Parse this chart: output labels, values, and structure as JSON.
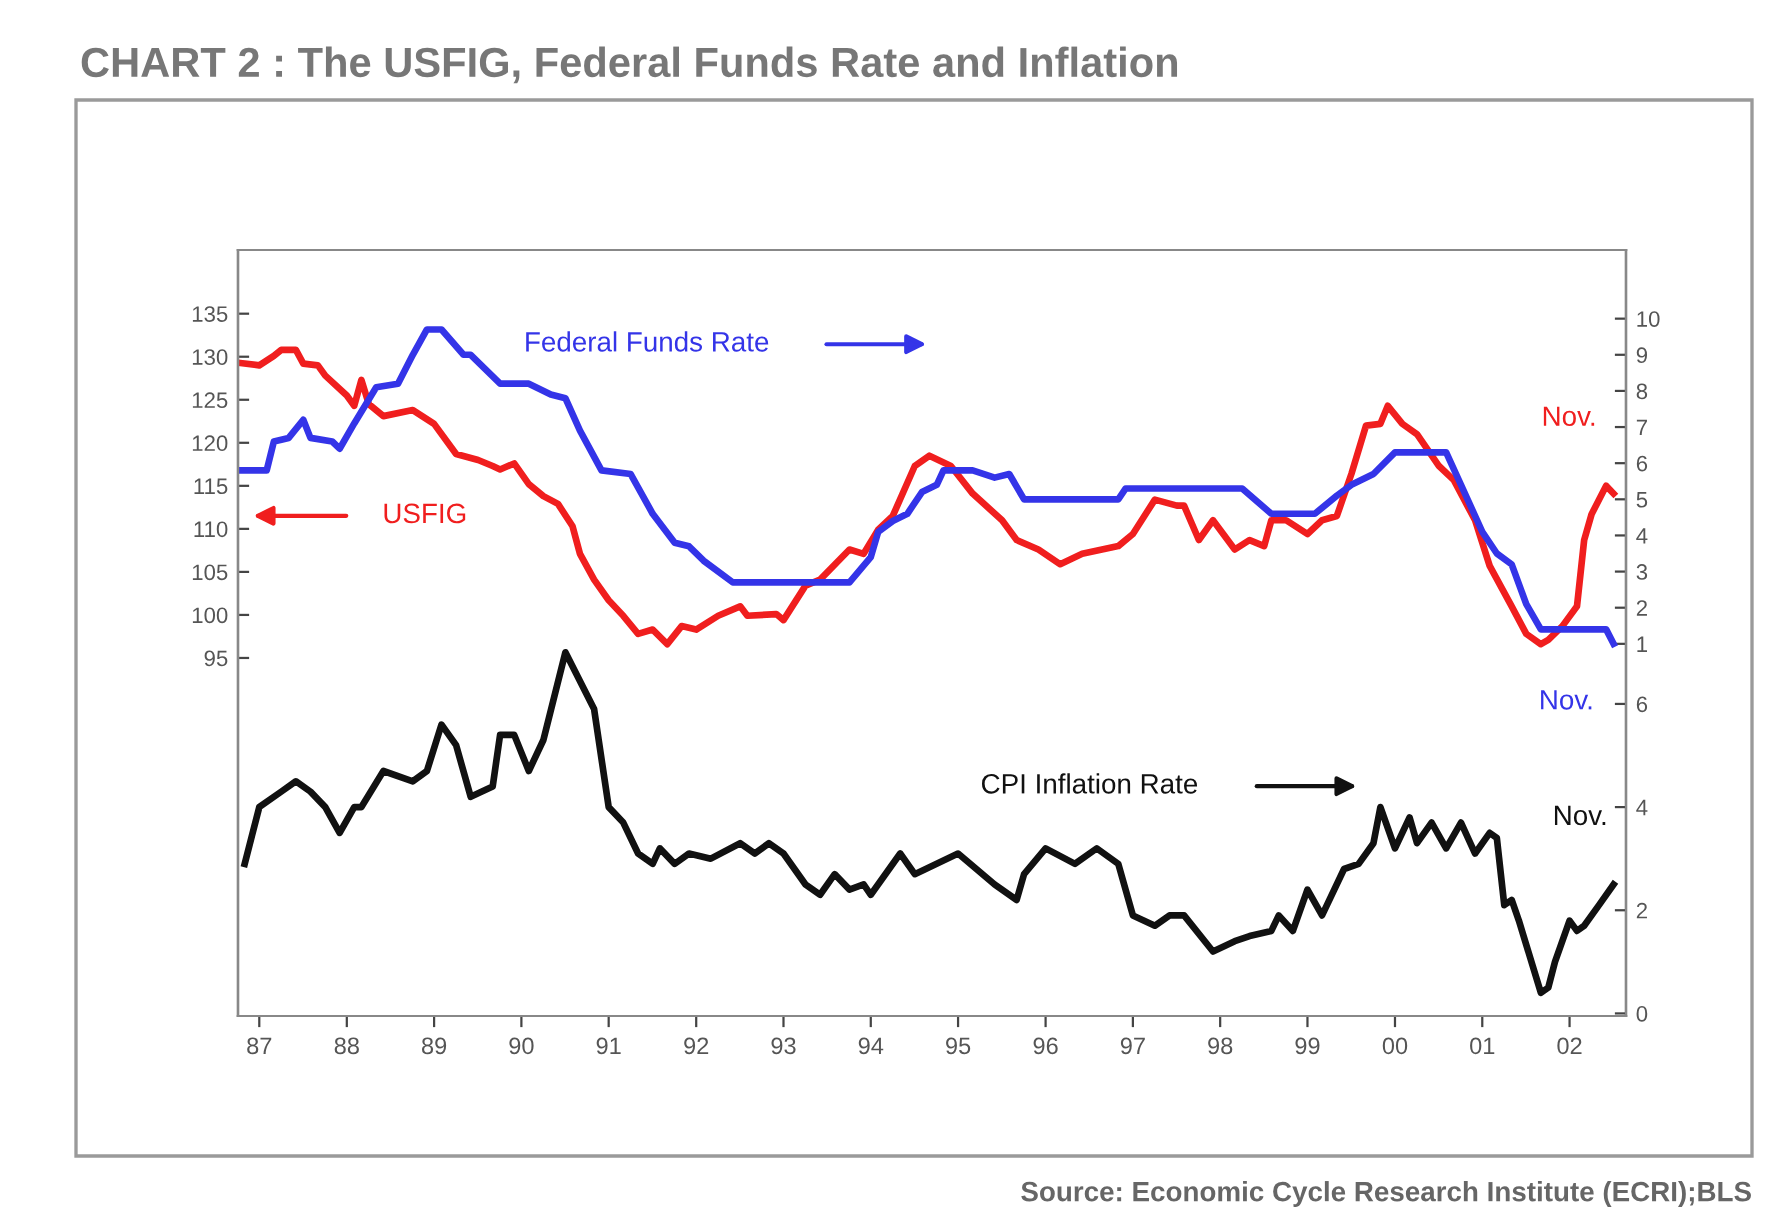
{
  "chart_data": {
    "type": "line",
    "title": "CHART 2 : The USFIG, Federal Funds Rate and Inflation",
    "series": [
      {
        "name": "USFIG",
        "color": "#f01e1e",
        "axis": "y",
        "x": [
          "1987-02",
          "1987-05",
          "1987-07",
          "1987-08",
          "1987-10",
          "1987-11",
          "1988-01",
          "1988-02",
          "1988-05",
          "1988-06",
          "1988-07",
          "1988-08",
          "1988-10",
          "1989-02",
          "1989-05",
          "1989-08",
          "1989-11",
          "1990-01",
          "1990-02",
          "1990-04",
          "1990-06",
          "1990-08",
          "1990-10",
          "1990-12",
          "1991-01",
          "1991-03",
          "1991-05",
          "1991-07",
          "1991-09",
          "1991-11",
          "1992-01",
          "1992-03",
          "1992-05",
          "1992-08",
          "1992-11",
          "1992-12",
          "1993-04",
          "1993-05",
          "1993-08",
          "1993-10",
          "1994-02",
          "1994-04",
          "1994-06",
          "1994-08",
          "1994-11",
          "1995-01",
          "1995-04",
          "1995-07",
          "1995-11",
          "1996-01",
          "1996-04",
          "1996-07",
          "1996-10",
          "1997-03",
          "1997-05",
          "1997-08",
          "1997-11",
          "1997-12",
          "1998-02",
          "1998-04",
          "1998-07",
          "1998-09",
          "1998-11",
          "1998-12",
          "1999-02",
          "1999-05",
          "1999-07",
          "1999-09",
          "1999-11",
          "2000-01",
          "2000-03",
          "2000-04",
          "2000-06",
          "2000-08",
          "2000-11",
          "2001-01",
          "2001-04",
          "2001-06",
          "2001-09",
          "2001-11",
          "2002-01",
          "2002-02",
          "2002-04",
          "2002-06",
          "2002-07",
          "2002-08",
          "2002-10",
          "2002-11"
        ],
        "values": [
          129.3,
          129.0,
          130.1,
          130.8,
          130.8,
          129.2,
          129.0,
          127.8,
          125.5,
          124.3,
          127.3,
          124.5,
          123.1,
          123.8,
          122.2,
          118.7,
          118.0,
          117.3,
          116.9,
          117.6,
          115.2,
          113.8,
          112.9,
          110.3,
          107.1,
          104.1,
          101.7,
          99.9,
          97.8,
          98.3,
          96.6,
          98.7,
          98.3,
          99.9,
          101.0,
          99.9,
          100.1,
          99.4,
          103.4,
          104.1,
          107.6,
          107.1,
          109.9,
          111.5,
          117.3,
          118.5,
          117.3,
          114.1,
          111.0,
          108.7,
          107.6,
          105.9,
          107.1,
          108.0,
          109.4,
          113.4,
          112.7,
          112.7,
          108.7,
          111.0,
          107.6,
          108.7,
          108.0,
          111.0,
          111.0,
          109.4,
          111.0,
          111.5,
          116.4,
          122.0,
          122.2,
          124.3,
          122.2,
          121.0,
          117.3,
          115.7,
          111.0,
          105.7,
          101.0,
          97.8,
          96.6,
          97.1,
          98.7,
          101.0,
          108.7,
          111.7,
          115.0,
          114.1
        ]
      },
      {
        "name": "Federal Funds Rate",
        "color": "#3434e8",
        "axis": "y2",
        "x": [
          "1987-02",
          "1987-06",
          "1987-07",
          "1987-09",
          "1987-11",
          "1987-12",
          "1988-03",
          "1988-04",
          "1988-06",
          "1988-09",
          "1988-12",
          "1989-02",
          "1989-04",
          "1989-06",
          "1989-09",
          "1989-10",
          "1990-02",
          "1990-06",
          "1990-09",
          "1990-11",
          "1991-01",
          "1991-04",
          "1991-08",
          "1991-11",
          "1992-02",
          "1992-04",
          "1992-06",
          "1992-10",
          "1993-01",
          "1994-02",
          "1994-05",
          "1994-06",
          "1994-08",
          "1994-10",
          "1994-12",
          "1995-02",
          "1995-03",
          "1995-07",
          "1995-10",
          "1995-12",
          "1996-02",
          "1997-03",
          "1997-04",
          "1998-08",
          "1998-12",
          "1999-06",
          "1999-09",
          "1999-11",
          "2000-02",
          "2000-05",
          "2000-12",
          "2001-02",
          "2001-05",
          "2001-07",
          "2001-09",
          "2001-11",
          "2002-01",
          "2002-10",
          "2002-11"
        ],
        "values": [
          5.8,
          5.8,
          6.6,
          6.7,
          7.2,
          6.7,
          6.6,
          6.4,
          7.1,
          8.1,
          8.2,
          9.0,
          9.7,
          9.7,
          9.0,
          9.0,
          8.2,
          8.2,
          7.9,
          7.8,
          6.9,
          5.8,
          5.7,
          4.6,
          3.8,
          3.7,
          3.3,
          2.7,
          2.7,
          2.7,
          3.4,
          4.1,
          4.4,
          4.6,
          5.2,
          5.4,
          5.8,
          5.8,
          5.6,
          5.7,
          5.0,
          5.0,
          5.3,
          5.3,
          4.6,
          4.6,
          5.1,
          5.4,
          5.7,
          6.3,
          6.3,
          5.4,
          4.1,
          3.5,
          3.2,
          2.1,
          1.4,
          1.4,
          1.0
        ]
      },
      {
        "name": "CPI Inflation Rate",
        "color": "#111111",
        "axis": "y3",
        "x": [
          "1987-03",
          "1987-05",
          "1987-08",
          "1987-10",
          "1987-12",
          "1988-02",
          "1988-04",
          "1988-06",
          "1988-07",
          "1988-10",
          "1989-02",
          "1989-04",
          "1989-06",
          "1989-08",
          "1989-10",
          "1990-01",
          "1990-02",
          "1990-04",
          "1990-06",
          "1990-08",
          "1990-11",
          "1991-03",
          "1991-05",
          "1991-07",
          "1991-09",
          "1991-11",
          "1991-12",
          "1992-02",
          "1992-04",
          "1992-07",
          "1992-11",
          "1993-01",
          "1993-03",
          "1993-05",
          "1993-08",
          "1993-10",
          "1993-12",
          "1994-02",
          "1994-04",
          "1994-05",
          "1994-09",
          "1994-11",
          "1995-05",
          "1995-10",
          "1996-01",
          "1996-02",
          "1996-05",
          "1996-09",
          "1996-12",
          "1997-03",
          "1997-05",
          "1997-08",
          "1997-10",
          "1997-12",
          "1998-04",
          "1998-07",
          "1998-09",
          "1998-12",
          "1999-01",
          "1999-03",
          "1999-05",
          "1999-07",
          "1999-10",
          "1999-12",
          "2000-02",
          "2000-03",
          "2000-05",
          "2000-07",
          "2000-08",
          "2000-10",
          "2000-12",
          "2001-02",
          "2001-04",
          "2001-06",
          "2001-07",
          "2001-08",
          "2001-09",
          "2001-10",
          "2002-01",
          "2002-02",
          "2002-03",
          "2002-05",
          "2002-06",
          "2002-07",
          "2002-09",
          "2002-11"
        ],
        "values": [
          2.9,
          4.0,
          4.3,
          4.5,
          4.3,
          4.0,
          3.5,
          4.0,
          4.0,
          4.7,
          4.5,
          4.7,
          5.6,
          5.2,
          4.2,
          4.4,
          5.4,
          5.4,
          4.7,
          5.3,
          7.0,
          5.9,
          4.0,
          3.7,
          3.1,
          2.9,
          3.2,
          2.9,
          3.1,
          3.0,
          3.3,
          3.1,
          3.3,
          3.1,
          2.5,
          2.3,
          2.7,
          2.4,
          2.5,
          2.3,
          3.1,
          2.7,
          3.1,
          2.5,
          2.2,
          2.7,
          3.2,
          2.9,
          3.2,
          2.9,
          1.9,
          1.7,
          1.9,
          1.9,
          1.2,
          1.4,
          1.5,
          1.6,
          1.9,
          1.6,
          2.4,
          1.9,
          2.8,
          2.9,
          3.3,
          4.0,
          3.2,
          3.8,
          3.3,
          3.7,
          3.2,
          3.7,
          3.1,
          3.5,
          3.4,
          2.1,
          2.2,
          1.8,
          0.4,
          0.5,
          1.0,
          1.8,
          1.6,
          1.7,
          2.1,
          2.5
        ]
      }
    ],
    "annotations": [
      "Nov.",
      "Nov.",
      "Nov.",
      "Source: Economic Cycle Research Institute (ECRI);BLS"
    ],
    "xlim": [
      "1987-02-01",
      "2002-12-23"
    ],
    "legend": "top",
    "xticks": [
      {
        "value": "1987-05",
        "label": "87"
      },
      {
        "value": "1988-05",
        "label": "88"
      },
      {
        "value": "1989-05",
        "label": "89"
      },
      {
        "value": "1990-05",
        "label": "90"
      },
      {
        "value": "1991-05",
        "label": "91"
      },
      {
        "value": "1992-05",
        "label": "92"
      },
      {
        "value": "1993-05",
        "label": "93"
      },
      {
        "value": "1994-05",
        "label": "94"
      },
      {
        "value": "1995-05",
        "label": "95"
      },
      {
        "value": "1996-05",
        "label": "96"
      },
      {
        "value": "1997-05",
        "label": "97"
      },
      {
        "value": "1998-05",
        "label": "98"
      },
      {
        "value": "1999-05",
        "label": "99"
      },
      {
        "value": "2000-05",
        "label": "00"
      },
      {
        "value": "2001-05",
        "label": "01"
      },
      {
        "value": "2002-05",
        "label": "02"
      }
    ],
    "ylim": [
      53.4,
      142.4
    ],
    "yticks": [
      95,
      100,
      105,
      110,
      115,
      120,
      125,
      130,
      135
    ],
    "y2lim": [
      -9.3,
      11.9
    ],
    "y2ticks": [
      1,
      2,
      3,
      4,
      5,
      6,
      7,
      8,
      9,
      10
    ],
    "y3lim": [
      -0.05,
      14.8
    ],
    "y3ticks": [
      0,
      2,
      4,
      6
    ]
  }
}
